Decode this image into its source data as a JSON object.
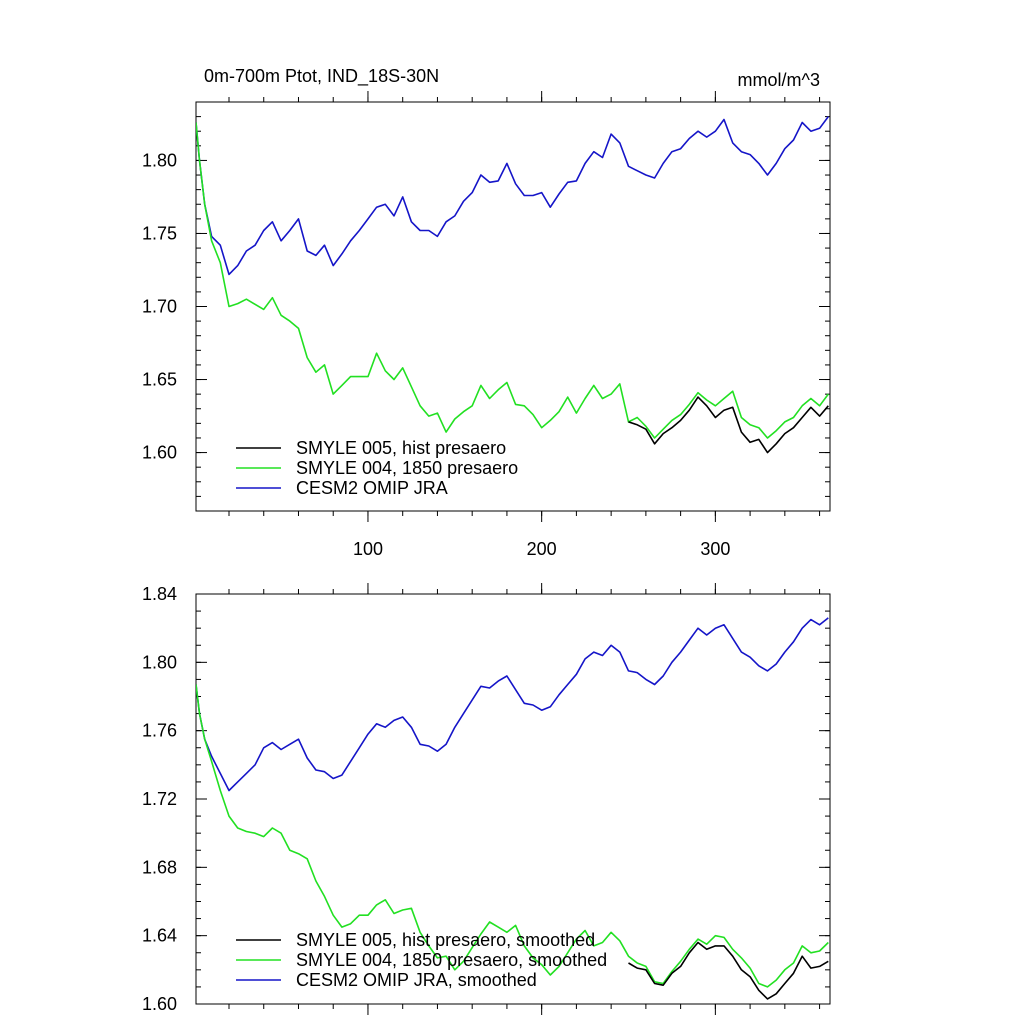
{
  "chart_data": [
    {
      "type": "line",
      "title_left": "0m-700m Ptot, IND_18S-30N",
      "title_right": "mmol/m^3",
      "xlim": [
        1,
        366
      ],
      "ylim": [
        1.56,
        1.84
      ],
      "yticks": [
        1.6,
        1.65,
        1.7,
        1.75,
        1.8
      ],
      "ytick_labels": [
        "1.60",
        "1.65",
        "1.70",
        "1.75",
        "1.80"
      ],
      "xticks": [
        100,
        200,
        300
      ],
      "xtick_labels": [
        "100",
        "200",
        "300"
      ],
      "legend_position": "bottom-left",
      "series": [
        {
          "name": "SMYLE 005, hist presaero",
          "color": "#000000",
          "x": [
            250,
            255,
            260,
            265,
            270,
            275,
            280,
            285,
            290,
            295,
            300,
            305,
            310,
            315,
            320,
            325,
            330,
            335,
            340,
            345,
            350,
            355,
            360,
            365
          ],
          "y": [
            1.621,
            1.619,
            1.616,
            1.606,
            1.613,
            1.617,
            1.622,
            1.629,
            1.638,
            1.632,
            1.624,
            1.629,
            1.631,
            1.614,
            1.607,
            1.609,
            1.6,
            1.606,
            1.613,
            1.617,
            1.624,
            1.631,
            1.625,
            1.632
          ]
        },
        {
          "name": "SMYLE 004, 1850 presaero",
          "color": "#22e022",
          "x": [
            1,
            3,
            6,
            10,
            15,
            20,
            25,
            30,
            40,
            45,
            50,
            55,
            60,
            65,
            70,
            75,
            80,
            85,
            90,
            100,
            105,
            110,
            115,
            120,
            125,
            130,
            135,
            140,
            145,
            150,
            155,
            160,
            165,
            170,
            175,
            180,
            185,
            190,
            195,
            200,
            205,
            210,
            215,
            220,
            225,
            230,
            235,
            240,
            245,
            250,
            255,
            260,
            265,
            270,
            275,
            280,
            285,
            290,
            295,
            300,
            305,
            310,
            315,
            320,
            325,
            330,
            335,
            340,
            345,
            350,
            355,
            360,
            365
          ],
          "y": [
            1.826,
            1.8,
            1.77,
            1.745,
            1.73,
            1.7,
            1.702,
            1.705,
            1.698,
            1.706,
            1.694,
            1.69,
            1.685,
            1.665,
            1.655,
            1.66,
            1.64,
            1.646,
            1.652,
            1.652,
            1.668,
            1.656,
            1.65,
            1.658,
            1.645,
            1.632,
            1.625,
            1.627,
            1.614,
            1.623,
            1.628,
            1.632,
            1.646,
            1.637,
            1.643,
            1.648,
            1.633,
            1.632,
            1.626,
            1.617,
            1.622,
            1.628,
            1.638,
            1.627,
            1.637,
            1.646,
            1.637,
            1.64,
            1.647,
            1.621,
            1.624,
            1.618,
            1.61,
            1.616,
            1.622,
            1.626,
            1.633,
            1.641,
            1.636,
            1.632,
            1.637,
            1.642,
            1.624,
            1.619,
            1.617,
            1.61,
            1.615,
            1.621,
            1.624,
            1.632,
            1.637,
            1.632,
            1.64
          ]
        },
        {
          "name": "CESM2 OMIP JRA",
          "color": "#1515c8",
          "x": [
            1,
            3,
            6,
            10,
            15,
            20,
            25,
            30,
            35,
            40,
            45,
            50,
            55,
            60,
            65,
            70,
            75,
            80,
            85,
            90,
            95,
            100,
            105,
            110,
            115,
            120,
            125,
            130,
            135,
            140,
            145,
            150,
            155,
            160,
            165,
            170,
            175,
            180,
            185,
            190,
            195,
            200,
            205,
            210,
            215,
            220,
            225,
            230,
            235,
            240,
            245,
            250,
            255,
            260,
            265,
            270,
            275,
            280,
            285,
            290,
            295,
            300,
            305,
            310,
            315,
            320,
            325,
            330,
            335,
            340,
            345,
            350,
            355,
            360,
            365
          ],
          "y": [
            1.826,
            1.8,
            1.77,
            1.748,
            1.742,
            1.722,
            1.728,
            1.738,
            1.742,
            1.752,
            1.758,
            1.745,
            1.752,
            1.76,
            1.738,
            1.735,
            1.742,
            1.728,
            1.736,
            1.745,
            1.752,
            1.76,
            1.768,
            1.77,
            1.762,
            1.775,
            1.758,
            1.752,
            1.752,
            1.748,
            1.758,
            1.762,
            1.772,
            1.778,
            1.79,
            1.785,
            1.786,
            1.798,
            1.784,
            1.776,
            1.776,
            1.778,
            1.768,
            1.777,
            1.785,
            1.786,
            1.798,
            1.806,
            1.802,
            1.818,
            1.812,
            1.796,
            1.793,
            1.79,
            1.788,
            1.798,
            1.806,
            1.808,
            1.815,
            1.82,
            1.816,
            1.82,
            1.828,
            1.812,
            1.806,
            1.804,
            1.798,
            1.79,
            1.798,
            1.808,
            1.814,
            1.826,
            1.82,
            1.822,
            1.83
          ]
        }
      ]
    },
    {
      "type": "line",
      "xlim": [
        1,
        366
      ],
      "ylim": [
        1.6,
        1.84
      ],
      "yticks": [
        1.6,
        1.64,
        1.68,
        1.72,
        1.76,
        1.8,
        1.84
      ],
      "ytick_labels": [
        "1.60",
        "1.64",
        "1.68",
        "1.72",
        "1.76",
        "1.80",
        "1.84"
      ],
      "xticks": [
        100,
        200,
        300
      ],
      "legend_position": "bottom-left",
      "series": [
        {
          "name": "SMYLE 005, hist presaero, smoothed",
          "color": "#000000",
          "x": [
            250,
            255,
            260,
            265,
            270,
            275,
            280,
            285,
            290,
            295,
            300,
            305,
            310,
            315,
            320,
            325,
            330,
            335,
            340,
            345,
            350,
            355,
            360,
            365
          ],
          "y": [
            1.624,
            1.621,
            1.62,
            1.612,
            1.611,
            1.618,
            1.622,
            1.63,
            1.636,
            1.632,
            1.634,
            1.634,
            1.628,
            1.62,
            1.616,
            1.608,
            1.603,
            1.606,
            1.612,
            1.618,
            1.628,
            1.621,
            1.622,
            1.625
          ]
        },
        {
          "name": "SMYLE 004, 1850 presaero, smoothed",
          "color": "#22e022",
          "x": [
            1,
            3,
            6,
            10,
            15,
            20,
            25,
            30,
            35,
            40,
            45,
            50,
            55,
            60,
            65,
            70,
            75,
            80,
            85,
            90,
            95,
            100,
            105,
            110,
            115,
            120,
            125,
            130,
            135,
            140,
            145,
            150,
            155,
            160,
            165,
            170,
            175,
            180,
            185,
            190,
            195,
            200,
            205,
            210,
            215,
            220,
            225,
            230,
            235,
            240,
            245,
            250,
            255,
            260,
            265,
            270,
            275,
            280,
            285,
            290,
            295,
            300,
            305,
            310,
            315,
            320,
            325,
            330,
            335,
            340,
            345,
            350,
            355,
            360,
            365
          ],
          "y": [
            1.787,
            1.77,
            1.755,
            1.742,
            1.725,
            1.71,
            1.703,
            1.701,
            1.7,
            1.698,
            1.703,
            1.7,
            1.69,
            1.688,
            1.685,
            1.672,
            1.663,
            1.652,
            1.645,
            1.647,
            1.652,
            1.652,
            1.658,
            1.661,
            1.653,
            1.655,
            1.656,
            1.642,
            1.634,
            1.627,
            1.628,
            1.62,
            1.625,
            1.633,
            1.641,
            1.648,
            1.645,
            1.642,
            1.646,
            1.634,
            1.627,
            1.623,
            1.617,
            1.622,
            1.63,
            1.638,
            1.643,
            1.634,
            1.636,
            1.642,
            1.637,
            1.628,
            1.624,
            1.622,
            1.613,
            1.612,
            1.619,
            1.625,
            1.632,
            1.638,
            1.635,
            1.64,
            1.639,
            1.632,
            1.627,
            1.621,
            1.612,
            1.61,
            1.614,
            1.62,
            1.624,
            1.634,
            1.63,
            1.631,
            1.636
          ]
        },
        {
          "name": "CESM2 OMIP JRA, smoothed",
          "color": "#1515c8",
          "x": [
            1,
            3,
            6,
            10,
            15,
            20,
            25,
            30,
            35,
            40,
            45,
            50,
            55,
            60,
            65,
            70,
            75,
            80,
            85,
            90,
            95,
            100,
            105,
            110,
            115,
            120,
            125,
            130,
            135,
            140,
            145,
            150,
            155,
            160,
            165,
            170,
            175,
            180,
            185,
            190,
            195,
            200,
            205,
            210,
            215,
            220,
            225,
            230,
            235,
            240,
            245,
            250,
            255,
            260,
            265,
            270,
            275,
            280,
            285,
            290,
            295,
            300,
            305,
            310,
            315,
            320,
            325,
            330,
            335,
            340,
            345,
            350,
            355,
            360,
            365
          ],
          "y": [
            1.787,
            1.77,
            1.755,
            1.745,
            1.735,
            1.725,
            1.73,
            1.735,
            1.74,
            1.75,
            1.753,
            1.749,
            1.752,
            1.755,
            1.744,
            1.737,
            1.736,
            1.732,
            1.734,
            1.742,
            1.75,
            1.758,
            1.764,
            1.762,
            1.766,
            1.768,
            1.762,
            1.752,
            1.751,
            1.748,
            1.752,
            1.762,
            1.77,
            1.778,
            1.786,
            1.785,
            1.789,
            1.792,
            1.784,
            1.776,
            1.775,
            1.772,
            1.774,
            1.781,
            1.787,
            1.793,
            1.802,
            1.806,
            1.804,
            1.81,
            1.806,
            1.795,
            1.794,
            1.79,
            1.787,
            1.792,
            1.8,
            1.806,
            1.813,
            1.82,
            1.816,
            1.82,
            1.822,
            1.814,
            1.806,
            1.803,
            1.798,
            1.795,
            1.799,
            1.806,
            1.812,
            1.82,
            1.825,
            1.822,
            1.826
          ]
        }
      ]
    }
  ]
}
